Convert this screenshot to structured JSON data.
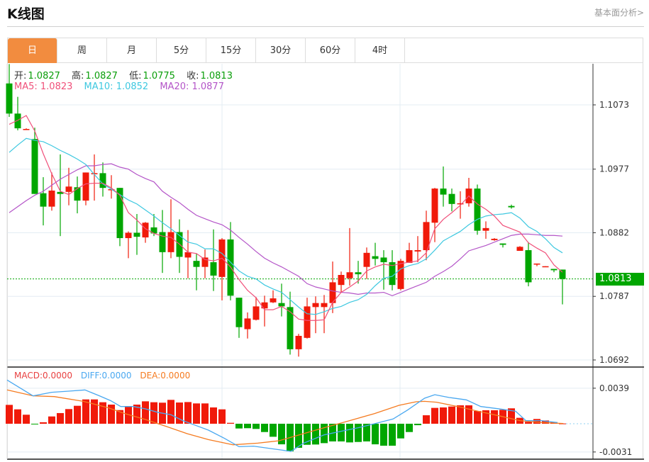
{
  "header": {
    "title": "K线图",
    "link": "基本面分析>"
  },
  "tabs": [
    {
      "label": "日",
      "active": true
    },
    {
      "label": "周"
    },
    {
      "label": "月"
    },
    {
      "label": "5分"
    },
    {
      "label": "15分"
    },
    {
      "label": "30分"
    },
    {
      "label": "60分"
    },
    {
      "label": "4时"
    }
  ],
  "ohlc": {
    "open_label": "开:",
    "open": "1.0827",
    "high_label": "高:",
    "high": "1.0827",
    "low_label": "低:",
    "low": "1.0775",
    "close_label": "收:",
    "close": "1.0813"
  },
  "ma": {
    "ma5": "MA5: 1.0823",
    "ma10": "MA10: 1.0852",
    "ma20": "MA20: 1.0877"
  },
  "macd_legend": {
    "macd": "MACD:0.0000",
    "diff": "DIFF:0.0000",
    "dea": "DEA:0.0000"
  },
  "current_price": "1.0813",
  "colors": {
    "up": "#f01a0a",
    "down": "#00a600",
    "ma5": "#f0507a",
    "ma10": "#3ec8e0",
    "ma20": "#b455c8",
    "diff": "#4aa8f0",
    "dea": "#f57b20",
    "accent": "#f28c3f"
  },
  "chart_data": [
    {
      "type": "candlestick",
      "y_ticks": [
        "1.1073",
        "1.0977",
        "1.0882",
        "1.0787",
        "1.0692"
      ],
      "ylim": [
        1.0692,
        1.1073
      ],
      "grid": true,
      "candles": [
        [
          1.1105,
          1.1134,
          1.1055,
          1.106
        ],
        [
          1.106,
          1.1085,
          1.1035,
          1.1038
        ],
        [
          1.1036,
          1.1038,
          1.1036,
          1.1037
        ],
        [
          1.1022,
          1.1039,
          1.094,
          1.094
        ],
        [
          1.0941,
          1.0965,
          1.0893,
          1.0921
        ],
        [
          1.0921,
          1.0972,
          1.0915,
          1.0945
        ],
        [
          1.0943,
          1.0999,
          1.0877,
          1.094
        ],
        [
          1.0943,
          1.0979,
          1.0923,
          1.0951
        ],
        [
          1.095,
          1.0966,
          1.0911,
          1.093
        ],
        [
          1.093,
          1.0972,
          1.0923,
          1.0972
        ],
        [
          1.097,
          1.0999,
          1.093,
          1.0971
        ],
        [
          1.0971,
          1.0987,
          1.0936,
          1.0949
        ],
        [
          1.0946,
          1.0968,
          1.0933,
          1.0947
        ],
        [
          1.0949,
          1.0949,
          1.0862,
          1.0874
        ],
        [
          1.0874,
          1.0884,
          1.0844,
          1.0882
        ],
        [
          1.0882,
          1.091,
          1.0849,
          1.0876
        ],
        [
          1.0875,
          1.0898,
          1.0867,
          1.0897
        ],
        [
          1.089,
          1.091,
          1.0877,
          1.0881
        ],
        [
          1.0883,
          1.0916,
          1.0822,
          1.0853
        ],
        [
          1.0853,
          1.0932,
          1.0844,
          1.0883
        ],
        [
          1.0883,
          1.0902,
          1.0822,
          1.0846
        ],
        [
          1.0845,
          1.0886,
          1.0814,
          1.0853
        ],
        [
          1.084,
          1.0851,
          1.0796,
          1.0831
        ],
        [
          1.0831,
          1.0857,
          1.0814,
          1.0845
        ],
        [
          1.0838,
          1.0887,
          1.0795,
          1.0818
        ],
        [
          1.0816,
          1.0874,
          1.0781,
          1.0872
        ],
        [
          1.0872,
          1.0898,
          1.0781,
          1.0788
        ],
        [
          1.0785,
          1.0785,
          1.0725,
          1.0741
        ],
        [
          1.0738,
          1.0763,
          1.0724,
          1.0754
        ],
        [
          1.0752,
          1.0786,
          1.0751,
          1.0772
        ],
        [
          1.0769,
          1.0788,
          1.0742,
          1.0778
        ],
        [
          1.0778,
          1.0796,
          1.0777,
          1.0784
        ],
        [
          1.0777,
          1.0806,
          1.0757,
          1.0772
        ],
        [
          1.0771,
          1.0794,
          1.07,
          1.0708
        ],
        [
          1.0708,
          1.0731,
          1.0697,
          1.0728
        ],
        [
          1.0725,
          1.0785,
          1.0724,
          1.0772
        ],
        [
          1.0771,
          1.0787,
          1.0732,
          1.0777
        ],
        [
          1.0771,
          1.0789,
          1.0732,
          1.0777
        ],
        [
          1.0777,
          1.0839,
          1.0762,
          1.0808
        ],
        [
          1.0804,
          1.0824,
          1.0793,
          1.0819
        ],
        [
          1.0814,
          1.0889,
          1.0803,
          1.0823
        ],
        [
          1.0823,
          1.084,
          1.0806,
          1.082
        ],
        [
          1.0831,
          1.086,
          1.0813,
          1.0852
        ],
        [
          1.0847,
          1.0867,
          1.0833,
          1.0843
        ],
        [
          1.0845,
          1.0856,
          1.0797,
          1.0838
        ],
        [
          1.0838,
          1.0856,
          1.0796,
          1.0804
        ],
        [
          1.0798,
          1.0843,
          1.0796,
          1.084
        ],
        [
          1.0837,
          1.0867,
          1.0837,
          1.0856
        ],
        [
          1.0854,
          1.0877,
          1.0838,
          1.0856
        ],
        [
          1.0856,
          1.0915,
          1.0841,
          1.0898
        ],
        [
          1.0897,
          1.0949,
          1.0868,
          1.0948
        ],
        [
          1.0948,
          1.0981,
          1.0921,
          1.0939
        ],
        [
          1.094,
          1.0948,
          1.0914,
          1.0925
        ],
        [
          1.0925,
          1.0944,
          1.0903,
          1.0926
        ],
        [
          1.0926,
          1.0964,
          1.0921,
          1.0948
        ],
        [
          1.0948,
          1.0954,
          1.0879,
          1.0885
        ],
        [
          1.0885,
          1.0899,
          1.0873,
          1.0889
        ],
        [
          1.0871,
          1.0874,
          1.087,
          1.0873
        ],
        [
          1.0866,
          1.0866,
          1.086,
          1.0864
        ],
        [
          1.0922,
          1.0924,
          1.0918,
          1.092
        ],
        [
          1.0855,
          1.0862,
          1.0855,
          1.0861
        ],
        [
          1.0856,
          1.0868,
          1.0802,
          1.0808
        ],
        [
          1.0835,
          1.0836,
          1.0832,
          1.0836
        ],
        [
          1.0831,
          1.0832,
          1.0831,
          1.0832
        ],
        [
          1.0828,
          1.0828,
          1.0823,
          1.0826
        ],
        [
          1.0827,
          1.0827,
          1.0775,
          1.0813
        ]
      ],
      "ma5": [
        1.1044,
        1.105,
        1.1057,
        1.1034,
        1.1,
        1.097,
        1.0944,
        1.0939,
        1.0948,
        1.0955,
        1.0956,
        1.0956,
        1.0949,
        1.0938,
        1.0912,
        1.0901,
        1.0888,
        1.0881,
        1.0877,
        1.0875,
        1.0865,
        1.0853,
        1.0851,
        1.0842,
        1.084,
        1.0844,
        1.0831,
        1.0812,
        1.0796,
        1.0785,
        1.0767,
        1.0767,
        1.0772,
        1.0764,
        1.0753,
        1.0751,
        1.0751,
        1.0752,
        1.0778,
        1.0793,
        1.0801,
        1.081,
        1.0825,
        1.0831,
        1.0835,
        1.0833,
        1.0836,
        1.0838,
        1.084,
        1.0852,
        1.0888,
        1.0902,
        1.0912,
        1.0923,
        1.0937,
        1.0925,
        1.0917,
        1.0907,
        1.0893,
        1.0888,
        1.0883,
        1.0867,
        1.0859,
        1.0852,
        1.0834,
        1.0823
      ],
      "ma10": [
        1.1002,
        1.1013,
        1.1023,
        1.102,
        1.1018,
        1.1012,
        1.1005,
        1.0999,
        1.0992,
        1.0984,
        1.0969,
        1.0955,
        1.0947,
        1.0939,
        1.0931,
        1.0925,
        1.0916,
        1.0907,
        1.0897,
        1.0888,
        1.0878,
        1.0868,
        1.0865,
        1.0858,
        1.0858,
        1.0851,
        1.0838,
        1.0825,
        1.0817,
        1.0813,
        1.0804,
        1.0798,
        1.0793,
        1.0782,
        1.0771,
        1.0761,
        1.076,
        1.0764,
        1.0769,
        1.0772,
        1.0778,
        1.0782,
        1.079,
        1.0803,
        1.0814,
        1.0817,
        1.0828,
        1.0833,
        1.0836,
        1.0843,
        1.0856,
        1.087,
        1.0877,
        1.0884,
        1.0894,
        1.0902,
        1.0907,
        1.0909,
        1.091,
        1.0912,
        1.0904,
        1.0891,
        1.0884,
        1.0873,
        1.086,
        1.0852
      ],
      "ma20": [
        1.0912,
        1.0921,
        1.093,
        1.0938,
        1.0944,
        1.0953,
        1.0962,
        1.0969,
        1.0976,
        1.0982,
        1.0982,
        1.0984,
        1.0985,
        1.098,
        1.0977,
        1.0969,
        1.0963,
        1.0958,
        1.0944,
        1.0935,
        1.0927,
        1.0917,
        1.0908,
        1.0903,
        1.0898,
        1.0894,
        1.0886,
        1.0875,
        1.0865,
        1.0854,
        1.0844,
        1.0837,
        1.0831,
        1.0824,
        1.0817,
        1.0806,
        1.0801,
        1.0798,
        1.0795,
        1.0793,
        1.0792,
        1.079,
        1.0792,
        1.0792,
        1.0793,
        1.0788,
        1.0793,
        1.0798,
        1.0803,
        1.0808,
        1.0817,
        1.0824,
        1.0832,
        1.0843,
        1.0855,
        1.0859,
        1.0863,
        1.0868,
        1.0873,
        1.0878,
        1.088,
        1.088,
        1.0879,
        1.0878,
        1.0878,
        1.0877
      ]
    },
    {
      "type": "bar+line",
      "y_ticks": [
        "0.0039",
        "-0.0031"
      ],
      "ylim": [
        -0.0031,
        0.0039
      ],
      "macd": [
        0.00207,
        0.00158,
        0.00099,
        -5e-05,
        0.00016,
        0.0008,
        0.00117,
        0.00161,
        0.00197,
        0.00267,
        0.00267,
        0.00236,
        0.0021,
        0.0015,
        0.00189,
        0.0021,
        0.00246,
        0.00236,
        0.00231,
        0.00262,
        0.00233,
        0.00238,
        0.00223,
        0.00223,
        0.00179,
        0.00158,
        0.0001,
        -0.00052,
        -0.00049,
        -0.00057,
        -0.00091,
        -0.00143,
        -0.00226,
        -0.00303,
        -0.00264,
        -0.00231,
        -0.00228,
        -0.00213,
        -0.00194,
        -0.00194,
        -0.00205,
        -0.002,
        -0.00194,
        -0.00226,
        -0.00241,
        -0.00241,
        -0.00161,
        -0.00091,
        -0.00016,
        0.00093,
        0.00174,
        0.00179,
        0.00189,
        0.00202,
        0.00202,
        0.0014,
        0.00148,
        0.00148,
        0.00153,
        0.00169,
        0.00065,
        0.00021,
        0.00052,
        0.00036,
        0.00018,
        3e-05
      ],
      "diff": [
        [
          -0.35,
          0.0048
        ],
        [
          2.8,
          0.00306
        ],
        [
          5.0,
          0.00345
        ],
        [
          7.0,
          0.00358
        ],
        [
          8.9,
          0.00371
        ],
        [
          10.6,
          0.00306
        ],
        [
          11.9,
          0.00254
        ],
        [
          13.1,
          0.00189
        ],
        [
          14.6,
          0.00189
        ],
        [
          16.0,
          0.00163
        ],
        [
          17.5,
          0.00124
        ],
        [
          19.0,
          0.00099
        ],
        [
          20.4,
          0.00034
        ],
        [
          21.9,
          -0.00018
        ],
        [
          23.4,
          -0.0007
        ],
        [
          25.3,
          -0.00161
        ],
        [
          27.0,
          -0.00252
        ],
        [
          28.7,
          -0.00246
        ],
        [
          30.7,
          -0.00272
        ],
        [
          33.1,
          -0.00303
        ],
        [
          34.6,
          -0.00213
        ],
        [
          37.0,
          -0.00122
        ],
        [
          39.0,
          -0.00083
        ],
        [
          41.0,
          -0.00044
        ],
        [
          42.9,
          0
        ],
        [
          45.1,
          0.00052
        ],
        [
          46.8,
          0.0015
        ],
        [
          48.8,
          0.0028
        ],
        [
          50.0,
          0.00319
        ],
        [
          51.7,
          0.00288
        ],
        [
          53.7,
          0.00262
        ],
        [
          55.4,
          0.00189
        ],
        [
          57.6,
          0.00163
        ],
        [
          59.5,
          0.00137
        ],
        [
          60.7,
          0.00034
        ],
        [
          62.5,
          0.00034
        ],
        [
          64.4,
          0.00013
        ]
      ],
      "dea": [
        [
          -0.35,
          0.00371
        ],
        [
          2.8,
          0.00306
        ],
        [
          5.3,
          0.00298
        ],
        [
          8.7,
          0.00246
        ],
        [
          11.6,
          0.00176
        ],
        [
          13.6,
          0.00111
        ],
        [
          16.0,
          0.00047
        ],
        [
          18.5,
          -0.00031
        ],
        [
          20.9,
          -0.00109
        ],
        [
          23.4,
          -0.00174
        ],
        [
          26.3,
          -0.00231
        ],
        [
          29.2,
          -0.00213
        ],
        [
          31.7,
          -0.00187
        ],
        [
          34.1,
          -0.00122
        ],
        [
          37.0,
          -0.00044
        ],
        [
          40.0,
          0.00034
        ],
        [
          42.9,
          0.00111
        ],
        [
          45.8,
          0.00202
        ],
        [
          47.8,
          0.00241
        ],
        [
          48.8,
          0.00246
        ],
        [
          50.2,
          0.00236
        ],
        [
          52.7,
          0.00189
        ],
        [
          55.1,
          0.00137
        ],
        [
          57.6,
          0.00086
        ],
        [
          60.0,
          0.00034
        ],
        [
          62.5,
          0.00013
        ],
        [
          65.1,
          3e-05
        ]
      ]
    }
  ]
}
